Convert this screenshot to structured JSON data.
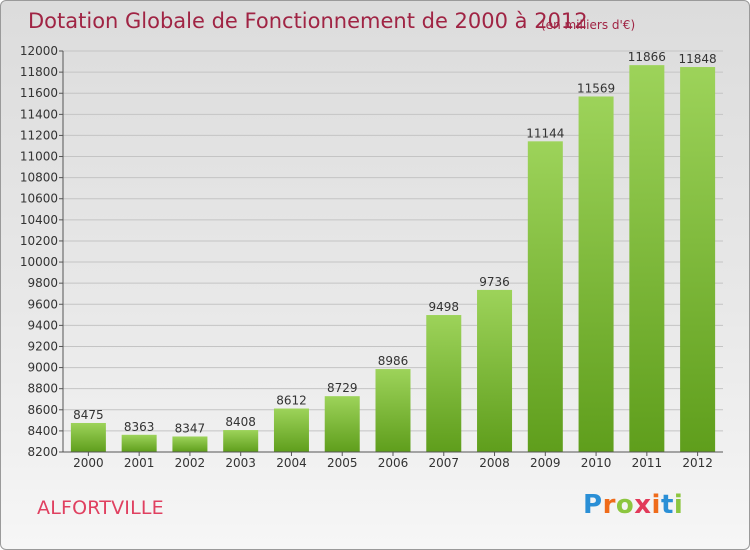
{
  "header": {
    "title": "Dotation Globale de Fonctionnement de 2000 à 2012",
    "unit": "(en milliers d'€)"
  },
  "footer": {
    "city": "ALFORTVILLE",
    "logo_letters": [
      "P",
      "r",
      "o",
      "x",
      "i",
      "t",
      "i"
    ],
    "logo_colors": [
      "#2a8fd6",
      "#ef6b1a",
      "#8cc63f",
      "#e23a5a",
      "#ef6b1a",
      "#2a8fd6",
      "#8cc63f"
    ]
  },
  "chart_data": {
    "type": "bar",
    "title": "Dotation Globale de Fonctionnement de 2000 à 2012",
    "subtitle": "(en milliers d'€)",
    "categories": [
      "2000",
      "2001",
      "2002",
      "2003",
      "2004",
      "2005",
      "2006",
      "2007",
      "2008",
      "2009",
      "2010",
      "2011",
      "2012"
    ],
    "values": [
      8475,
      8363,
      8347,
      8408,
      8612,
      8729,
      8986,
      9498,
      9736,
      11144,
      11569,
      11866,
      11848
    ],
    "ylim": [
      8200,
      12000
    ],
    "yticks": [
      8200,
      8400,
      8600,
      8800,
      9000,
      9200,
      9400,
      9600,
      9800,
      10000,
      10200,
      10400,
      10600,
      10800,
      11000,
      11200,
      11400,
      11600,
      11800,
      12000
    ],
    "grid": true,
    "bar_color_top": "#9dd35a",
    "bar_color_bottom": "#5f9e1c"
  }
}
